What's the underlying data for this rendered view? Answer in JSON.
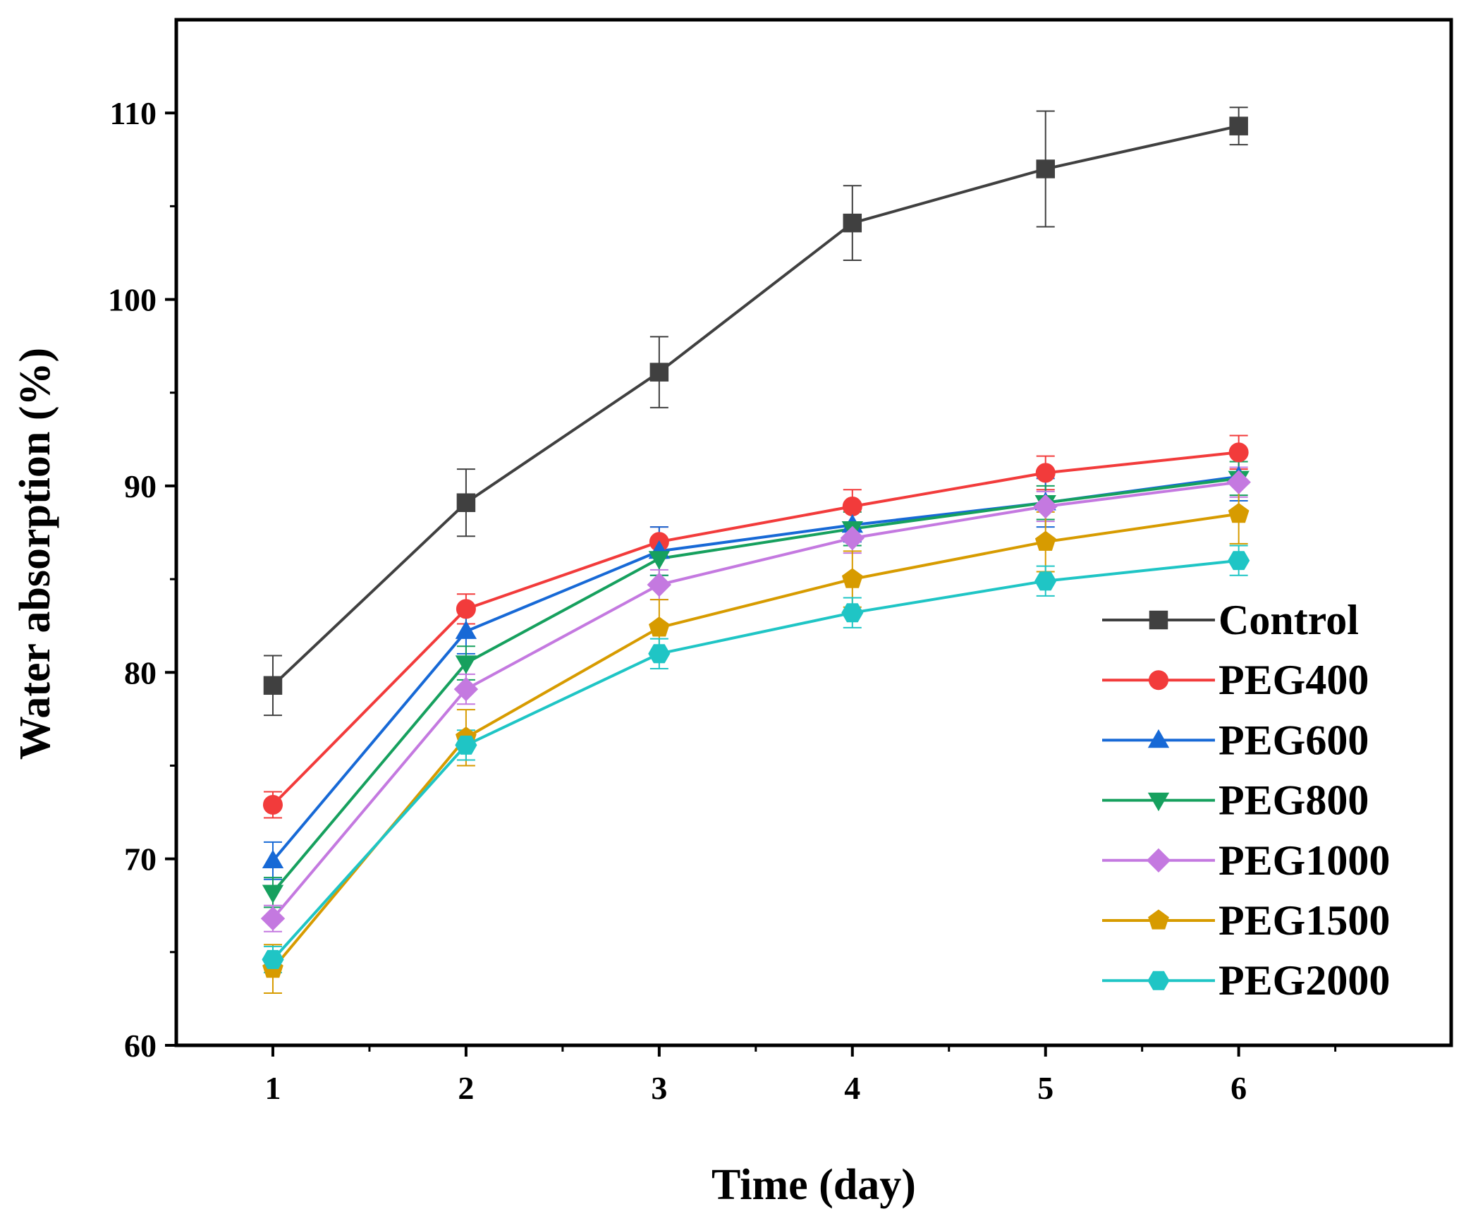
{
  "chart_data": {
    "type": "line",
    "title": "",
    "xlabel": "Time (day)",
    "ylabel": "Water absorption (%)",
    "x": [
      1,
      2,
      3,
      4,
      5,
      6
    ],
    "xlim": [
      0.5,
      7.1
    ],
    "ylim": [
      60,
      115
    ],
    "xticks": [
      "1",
      "2",
      "3",
      "4",
      "5",
      "6"
    ],
    "yticks": [
      "60",
      "70",
      "80",
      "90",
      "100",
      "110"
    ],
    "grid": false,
    "legend_position": "right",
    "series": [
      {
        "name": "Control",
        "color": "#404040",
        "marker": "square",
        "values": [
          79.3,
          89.1,
          96.1,
          104.1,
          107.0,
          109.3
        ],
        "errors": [
          1.6,
          1.8,
          1.9,
          2.0,
          3.1,
          1.0
        ]
      },
      {
        "name": "PEG400",
        "color": "#f23b3b",
        "marker": "circle",
        "values": [
          72.9,
          83.4,
          87.0,
          88.9,
          90.7,
          91.8
        ],
        "errors": [
          0.7,
          0.8,
          0.8,
          0.9,
          0.9,
          0.9
        ]
      },
      {
        "name": "PEG600",
        "color": "#1769d6",
        "marker": "triangle-up",
        "values": [
          69.9,
          82.2,
          86.5,
          87.9,
          89.1,
          90.5
        ],
        "errors": [
          1.0,
          1.2,
          1.3,
          0.9,
          1.3,
          1.3
        ]
      },
      {
        "name": "PEG800",
        "color": "#16a05e",
        "marker": "triangle-down",
        "values": [
          68.2,
          80.5,
          86.1,
          87.7,
          89.1,
          90.4
        ],
        "errors": [
          0.8,
          0.9,
          0.9,
          0.9,
          0.9,
          0.9
        ]
      },
      {
        "name": "PEG1000",
        "color": "#c479e0",
        "marker": "diamond",
        "values": [
          66.8,
          79.1,
          84.7,
          87.2,
          88.9,
          90.2
        ],
        "errors": [
          0.7,
          0.8,
          0.8,
          0.8,
          0.8,
          0.8
        ]
      },
      {
        "name": "PEG1500",
        "color": "#d79b00",
        "marker": "pentagon",
        "values": [
          64.1,
          76.5,
          82.4,
          85.0,
          87.0,
          88.5
        ],
        "errors": [
          1.3,
          1.5,
          1.5,
          1.5,
          1.6,
          1.6
        ]
      },
      {
        "name": "PEG2000",
        "color": "#1fc5c5",
        "marker": "hexagon",
        "values": [
          64.6,
          76.1,
          81.0,
          83.2,
          84.9,
          86.0
        ],
        "errors": [
          0.7,
          0.8,
          0.8,
          0.8,
          0.8,
          0.8
        ]
      }
    ]
  }
}
